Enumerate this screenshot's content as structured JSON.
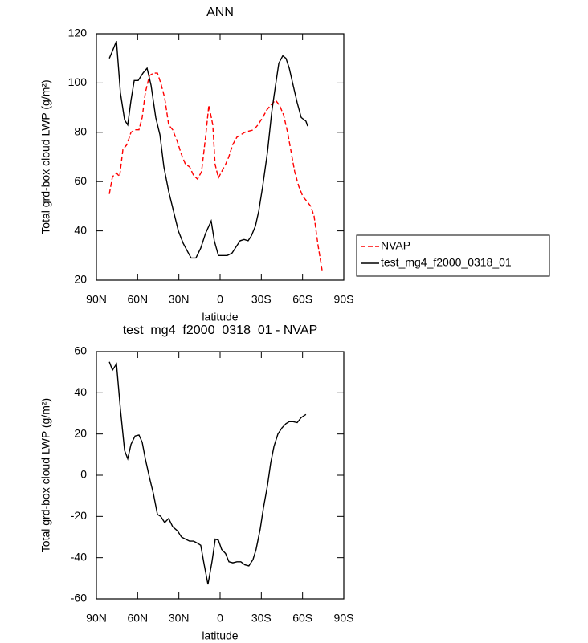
{
  "chart_data": [
    {
      "type": "line",
      "title": "ANN",
      "x_label": "latitude",
      "y_label": "Total grd-box cloud LWP (g/m²)",
      "xlim": [
        90,
        -90
      ],
      "ylim": [
        20,
        120
      ],
      "xticks": [
        {
          "value": 90,
          "label": "90N"
        },
        {
          "value": 60,
          "label": "60N"
        },
        {
          "value": 30,
          "label": "30N"
        },
        0,
        {
          "value": -30,
          "label": "30S"
        },
        {
          "value": -60,
          "label": "60S"
        },
        {
          "value": -90,
          "label": "90S"
        }
      ],
      "yticks": [
        20,
        40,
        60,
        80,
        100,
        120
      ],
      "legend": "right",
      "series": [
        {
          "name": "NVAP",
          "color": "#ff0000",
          "dash": true,
          "x": [
            80.6,
            78.3,
            75.4,
            73.1,
            70.7,
            67.8,
            64.8,
            61.9,
            59,
            56.7,
            54.4,
            51.4,
            48.5,
            45.6,
            43.2,
            40.3,
            37.4,
            34.5,
            31,
            28.1,
            25.2,
            22.2,
            19.3,
            16.4,
            13.5,
            10.6,
            8.2,
            5.3,
            3.6,
            1.2,
            -1.1,
            -4,
            -6.3,
            -9.2,
            -12.2,
            -15.1,
            -18,
            -20.9,
            -24.5,
            -27.5,
            -31,
            -33.9,
            -36.8,
            -40.3,
            -43.2,
            -46.2,
            -49.1,
            -52,
            -54.3,
            -57.3,
            -60.2,
            -63.1,
            -66,
            -68.4,
            -71.3,
            -74.2
          ],
          "values": [
            55,
            62,
            63.5,
            62,
            73,
            75,
            80,
            81,
            81,
            86,
            96,
            103,
            104,
            104,
            100,
            94,
            83,
            81,
            76,
            71,
            67,
            66,
            62.5,
            61,
            64,
            78,
            91,
            83,
            67,
            61.5,
            64,
            67,
            70,
            75,
            78,
            79,
            80,
            80.5,
            81,
            83,
            86,
            89,
            91,
            93,
            91,
            87,
            80,
            71,
            64,
            58,
            54,
            52,
            50,
            46,
            34,
            24
          ]
        },
        {
          "name": "test_mg4_f2000_0318_01",
          "color": "#000000",
          "dash": false,
          "x": [
            80.6,
            78.3,
            75.4,
            72.5,
            69.5,
            67.2,
            64.8,
            62.5,
            59.6,
            56.1,
            53.1,
            50.2,
            46.8,
            43.8,
            40.9,
            37.4,
            33.9,
            30.4,
            26.9,
            24,
            21.1,
            17.6,
            14.1,
            10.6,
            6.5,
            4.2,
            1.2,
            -2.3,
            -5.2,
            -8.7,
            -12.2,
            -14.6,
            -17.5,
            -20.4,
            -22.8,
            -25.7,
            -28.1,
            -31,
            -34.5,
            -37.5,
            -40.3,
            -42.7,
            -45.6,
            -47.9,
            -50.3,
            -53.2,
            -56.1,
            -59,
            -62.5,
            -63.7
          ],
          "values": [
            110,
            113,
            117,
            96,
            85,
            83,
            93,
            101,
            101,
            104,
            106,
            99,
            86,
            79,
            66,
            56,
            48,
            40,
            35,
            32,
            29,
            29,
            33,
            39,
            44,
            36,
            30,
            30,
            30,
            31,
            34,
            36,
            36.5,
            36,
            38,
            42,
            48,
            58,
            72,
            88,
            99,
            108,
            111,
            110,
            106,
            99,
            92,
            86,
            84.5,
            82.5
          ]
        }
      ]
    },
    {
      "type": "line",
      "title": "test_mg4_f2000_0318_01 - NVAP",
      "x_label": "latitude",
      "y_label": "Total grd-box cloud LWP (g/m²)",
      "xlim": [
        90,
        -90
      ],
      "ylim": [
        -60,
        60
      ],
      "xticks": [
        {
          "value": 90,
          "label": "90N"
        },
        {
          "value": 60,
          "label": "60N"
        },
        {
          "value": 30,
          "label": "30N"
        },
        0,
        {
          "value": -30,
          "label": "30S"
        },
        {
          "value": -60,
          "label": "60S"
        },
        {
          "value": -90,
          "label": "90S"
        }
      ],
      "yticks": [
        -60,
        -40,
        -20,
        0,
        20,
        40,
        60
      ],
      "series": [
        {
          "color": "#000000",
          "dash": false,
          "x": [
            80.6,
            78.3,
            75.4,
            72.5,
            69.5,
            67.2,
            64.8,
            61.9,
            59,
            56.7,
            54.4,
            51.4,
            48.5,
            45.6,
            43.2,
            40.3,
            37.4,
            34.5,
            31,
            28.1,
            25.2,
            22.2,
            19.3,
            16.4,
            14.1,
            11.7,
            8.8,
            5.9,
            3.5,
            1.2,
            -1.1,
            -4,
            -6.4,
            -9.3,
            -12.2,
            -15.1,
            -18,
            -20.9,
            -23.9,
            -26.2,
            -29.2,
            -31.5,
            -34.5,
            -36.8,
            -39.2,
            -42.1,
            -45,
            -47.9,
            -50.3,
            -53.2,
            -56.1,
            -59,
            -62.5
          ],
          "values": [
            55,
            51,
            54,
            32,
            12,
            8,
            15,
            19,
            19.5,
            16,
            8,
            -1,
            -9,
            -19,
            -20,
            -23,
            -21,
            -25,
            -27,
            -30,
            -31,
            -32,
            -32,
            -33,
            -34,
            -43,
            -53,
            -42,
            -31,
            -31.5,
            -36,
            -38,
            -42,
            -42.5,
            -42,
            -42,
            -43.5,
            -44,
            -41,
            -36,
            -26,
            -16,
            -5,
            6,
            14,
            20,
            23,
            25,
            26,
            26,
            25.5,
            28,
            29.5
          ]
        }
      ]
    }
  ]
}
